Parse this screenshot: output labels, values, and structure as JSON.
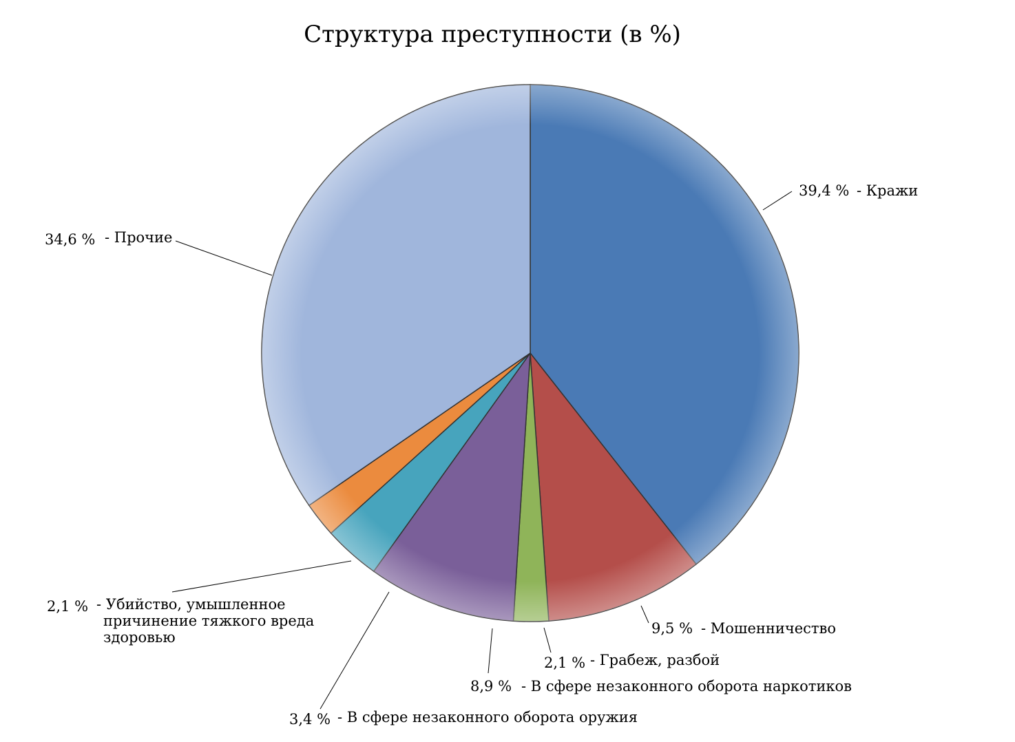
{
  "chart_data": {
    "type": "pie",
    "title": "Структура преступности (в %)",
    "slices": [
      {
        "value": 39.4,
        "value_label": "39,4 %",
        "label": [
          "- Кражи"
        ],
        "color": "#4A7AB5"
      },
      {
        "value": 9.5,
        "value_label": "9,5 %",
        "label": [
          "- Мошенничество"
        ],
        "color": "#B44E4A"
      },
      {
        "value": 2.1,
        "value_label": "2,1 %",
        "label": [
          "- Грабеж, разбой"
        ],
        "color": "#8FB459"
      },
      {
        "value": 8.9,
        "value_label": "8,9 %",
        "label": [
          "- В сфере незаконного оборота наркотиков"
        ],
        "color": "#7A5F99"
      },
      {
        "value": 3.4,
        "value_label": "3,4 %",
        "label": [
          "- В сфере незаконного оборота оружия"
        ],
        "color": "#47A4BD"
      },
      {
        "value": 2.1,
        "value_label": "2,1 %",
        "label": [
          "- Убийство, умышленное",
          "причинение тяжкого вреда",
          "здоровью"
        ],
        "color": "#EB8B3E"
      },
      {
        "value": 34.6,
        "value_label": "34,6 %",
        "label": [
          "- Прочие"
        ],
        "color": "#A0B6DC"
      }
    ],
    "start_angle_deg": 0,
    "direction": "clockwise",
    "legend": "none"
  }
}
